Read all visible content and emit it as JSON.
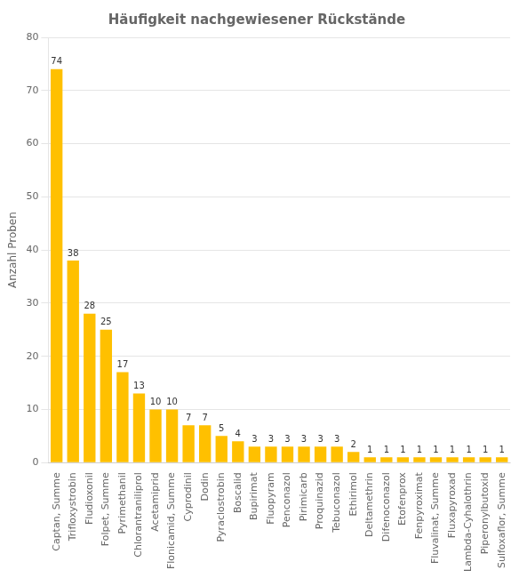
{
  "chart_data": {
    "type": "bar",
    "title": "Häufigkeit nachgewiesener Rückstände",
    "ylabel": "Anzahl Proben",
    "categories": [
      "Captan, Summe",
      "Trifloxystrobin",
      "Fludioxonil",
      "Folpet, Summe",
      "Pyrimethanil",
      "Chlorantraniliprol",
      "Acetamiprid",
      "Flonicamid, Summe",
      "Cyprodinil",
      "Dodin",
      "Pyraclostrobin",
      "Boscalid",
      "Bupirimat",
      "Fluopyram",
      "Penconazol",
      "Pirimicarb",
      "Proquinazid",
      "Tebuconazol",
      "Ethirimol",
      "Deltamethrin",
      "Difenoconazol",
      "Etofenprox",
      "Fenpyroximat",
      "Fluvalinat, Summe",
      "Fluxapyroxad",
      "Lambda-Cyhalothrin",
      "Piperonylbutoxid",
      "Sulfoxaflor, Summe"
    ],
    "values": [
      74,
      38,
      28,
      25,
      17,
      13,
      10,
      10,
      7,
      7,
      5,
      4,
      3,
      3,
      3,
      3,
      3,
      3,
      2,
      1,
      1,
      1,
      1,
      1,
      1,
      1,
      1,
      1
    ],
    "color": "#FFC000",
    "ylim": [
      0,
      80
    ],
    "yticks": [
      0,
      10,
      20,
      30,
      40,
      50,
      60,
      70,
      80
    ],
    "grid": true,
    "data_labels": true
  }
}
